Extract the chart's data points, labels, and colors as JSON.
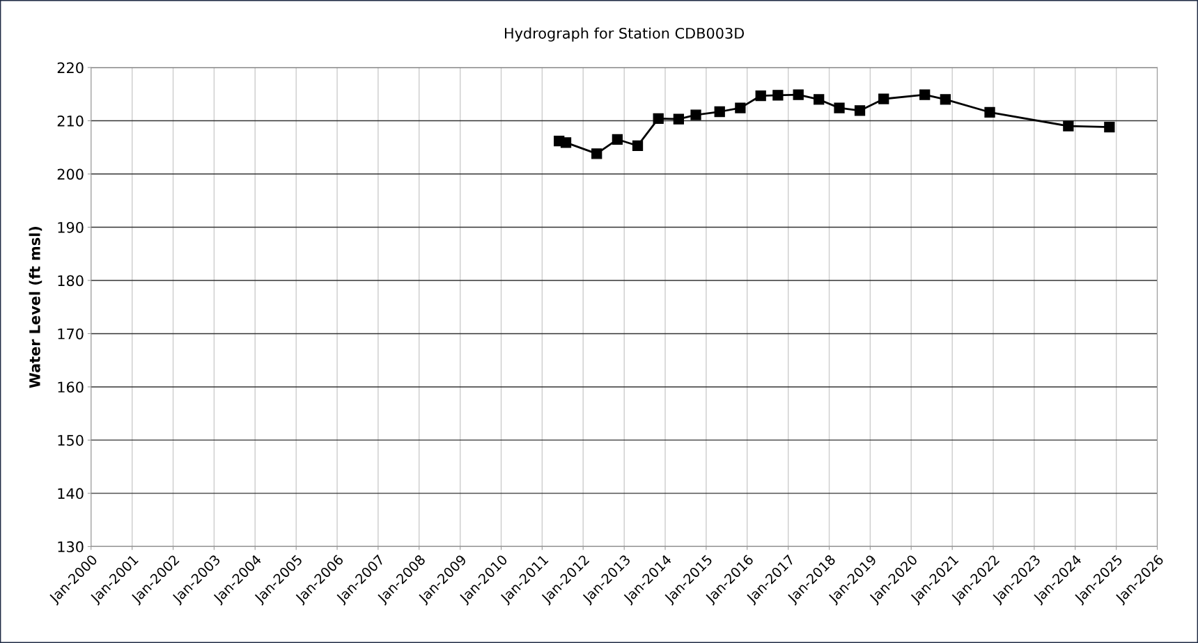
{
  "chart_data": {
    "type": "line",
    "title": "Hydrograph for Station CDB003D",
    "ylabel": "Water Level (ft msl)",
    "x": [
      "2011-06",
      "2011-08",
      "2012-05",
      "2012-11",
      "2013-05",
      "2013-11",
      "2014-05",
      "2014-10",
      "2015-05",
      "2015-11",
      "2016-05",
      "2016-10",
      "2017-04",
      "2017-10",
      "2018-04",
      "2018-10",
      "2019-05",
      "2020-05",
      "2020-11",
      "2021-12",
      "2023-11",
      "2024-11"
    ],
    "series": [
      {
        "color": "#000000",
        "values": [
          206.2,
          205.9,
          203.8,
          206.5,
          205.3,
          210.4,
          210.3,
          211.1,
          211.7,
          212.4,
          214.7,
          214.8,
          214.9,
          214.0,
          212.4,
          211.9,
          214.1,
          214.9,
          214.0,
          211.6,
          209.0,
          208.8
        ]
      }
    ],
    "xlim": [
      "2000-01",
      "2026-01"
    ],
    "xticks": [
      {
        "value": "2000-01",
        "label": "Jan-2000"
      },
      {
        "value": "2001-01",
        "label": "Jan-2001"
      },
      {
        "value": "2002-01",
        "label": "Jan-2002"
      },
      {
        "value": "2003-01",
        "label": "Jan-2003"
      },
      {
        "value": "2004-01",
        "label": "Jan-2004"
      },
      {
        "value": "2005-01",
        "label": "Jan-2005"
      },
      {
        "value": "2006-01",
        "label": "Jan-2006"
      },
      {
        "value": "2007-01",
        "label": "Jan-2007"
      },
      {
        "value": "2008-01",
        "label": "Jan-2008"
      },
      {
        "value": "2009-01",
        "label": "Jan-2009"
      },
      {
        "value": "2010-01",
        "label": "Jan-2010"
      },
      {
        "value": "2011-01",
        "label": "Jan-2011"
      },
      {
        "value": "2012-01",
        "label": "Jan-2012"
      },
      {
        "value": "2013-01",
        "label": "Jan-2013"
      },
      {
        "value": "2014-01",
        "label": "Jan-2014"
      },
      {
        "value": "2015-01",
        "label": "Jan-2015"
      },
      {
        "value": "2016-01",
        "label": "Jan-2016"
      },
      {
        "value": "2017-01",
        "label": "Jan-2017"
      },
      {
        "value": "2018-01",
        "label": "Jan-2018"
      },
      {
        "value": "2019-01",
        "label": "Jan-2019"
      },
      {
        "value": "2020-01",
        "label": "Jan-2020"
      },
      {
        "value": "2021-01",
        "label": "Jan-2021"
      },
      {
        "value": "2022-01",
        "label": "Jan-2022"
      },
      {
        "value": "2023-01",
        "label": "Jan-2023"
      },
      {
        "value": "2024-01",
        "label": "Jan-2024"
      },
      {
        "value": "2025-01",
        "label": "Jan-2025"
      },
      {
        "value": "2026-01",
        "label": "Jan-2026"
      }
    ],
    "ylim": [
      130,
      220
    ],
    "yticks": [
      130,
      140,
      150,
      160,
      170,
      180,
      190,
      200,
      210,
      220
    ],
    "grid": true,
    "marker": "square",
    "line_style": "solid"
  }
}
